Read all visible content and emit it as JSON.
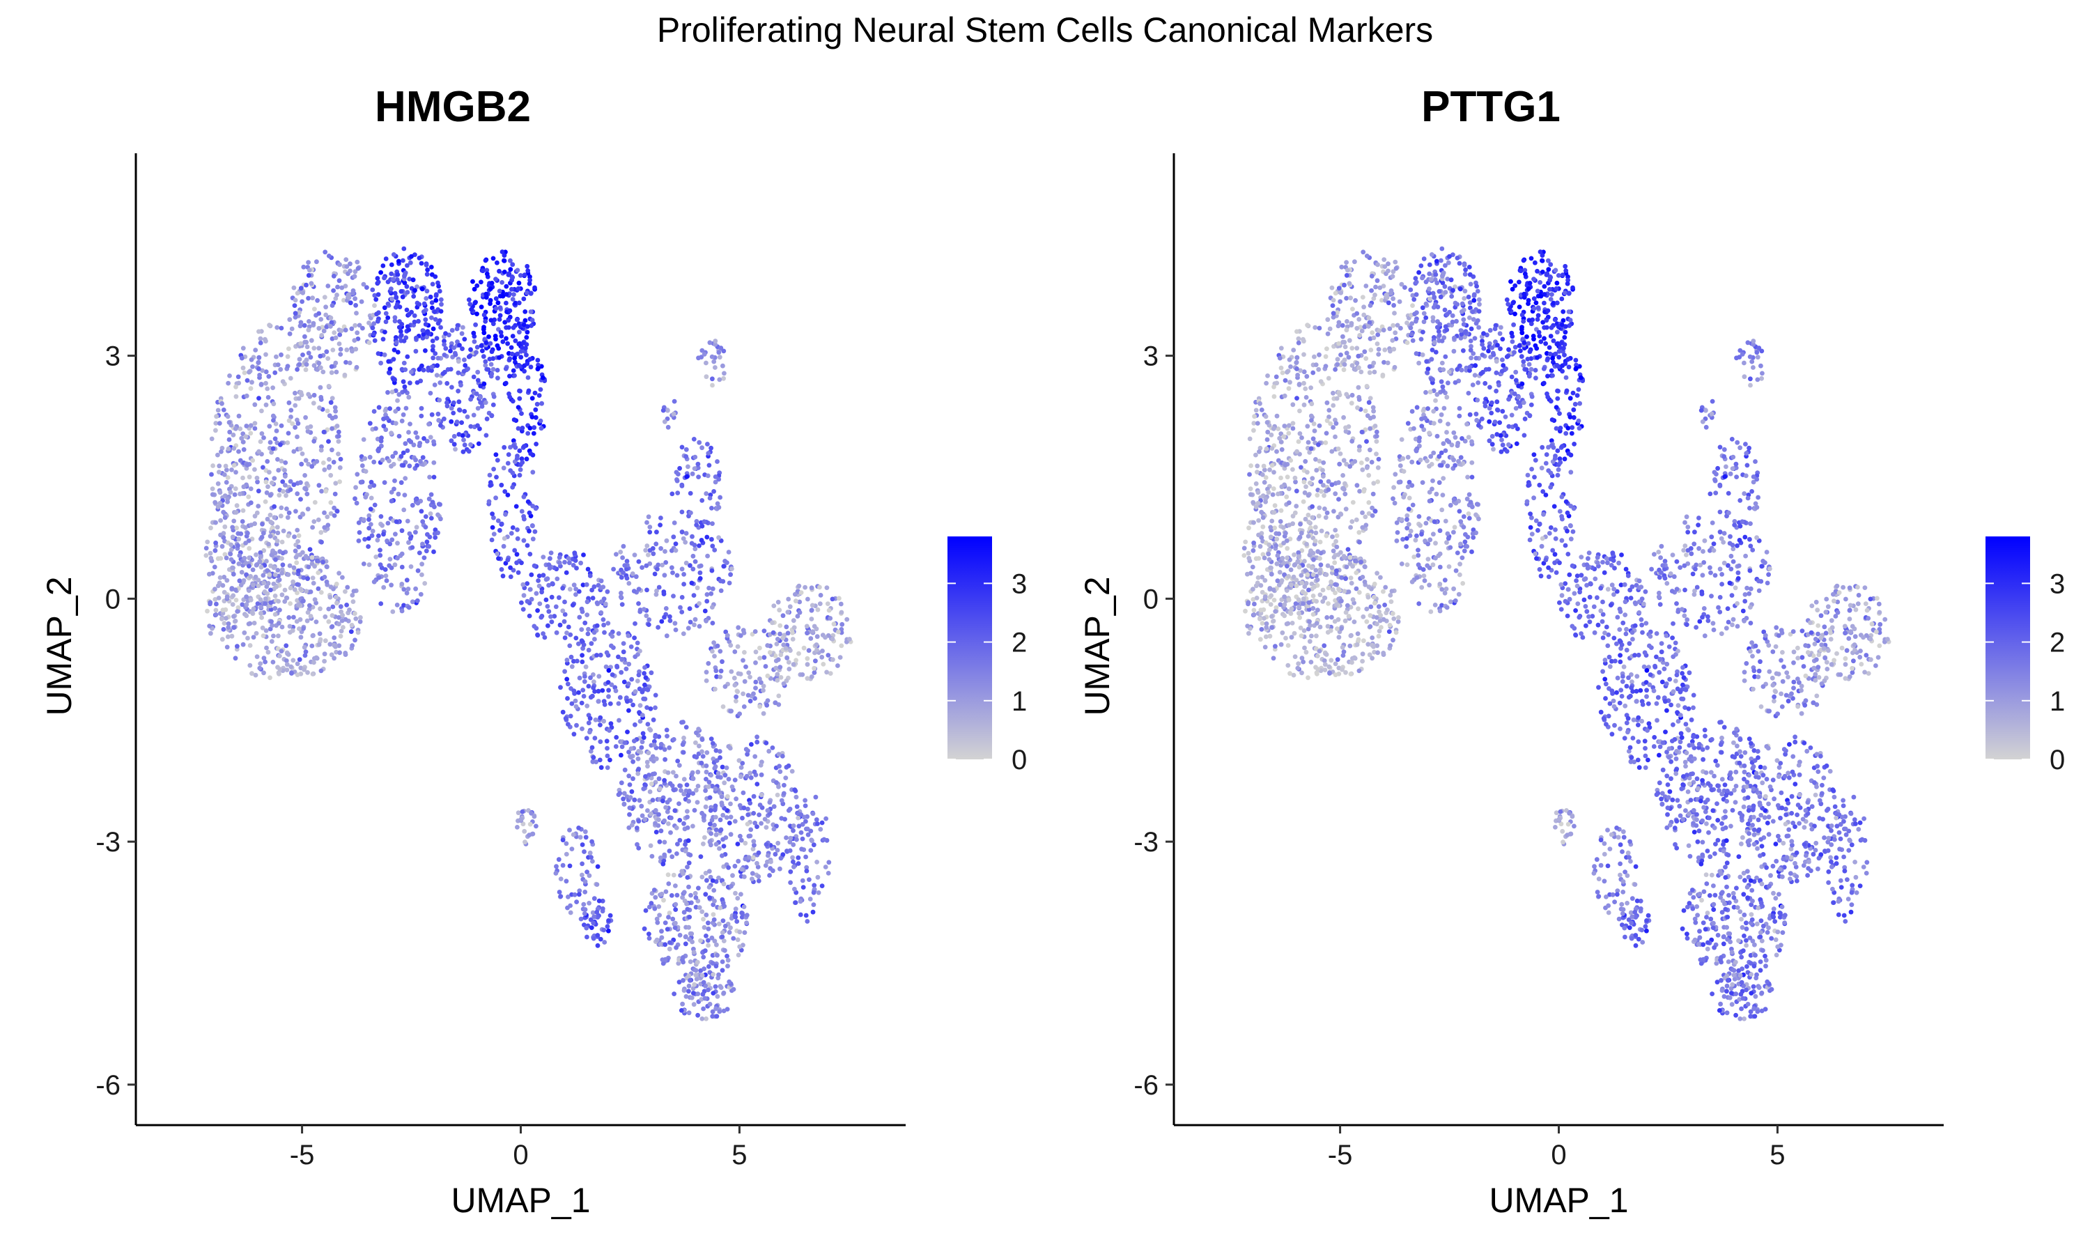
{
  "figure": {
    "title": "Proliferating Neural Stem Cells Canonical Markers"
  },
  "colors": {
    "low": "#d3d3d3",
    "high": "#0000ff",
    "axis": "#000000"
  },
  "chart_data": [
    {
      "type": "scatter",
      "title": "HMGB2",
      "xlabel": "UMAP_1",
      "ylabel": "UMAP_2",
      "xlim": [
        -8.8,
        8.8
      ],
      "ylim": [
        -6.5,
        5.5
      ],
      "xticks": [
        -5,
        0,
        5
      ],
      "yticks": [
        -6,
        -3,
        0,
        3
      ],
      "xtick_labels": [
        "-5",
        "0",
        "5"
      ],
      "ytick_labels": [
        "-6",
        "-3",
        "0",
        "3"
      ],
      "grid": false,
      "legend": {
        "placement": "right",
        "min": 0,
        "max": 3.8,
        "ticks": [
          0,
          1,
          2,
          3
        ],
        "tick_labels": [
          "0",
          "1",
          "2",
          "3"
        ]
      },
      "regions": [
        {
          "cx": -5.6,
          "cy": 1.6,
          "rx": 1.5,
          "ry": 1.8,
          "n": 520,
          "mean": 1.0
        },
        {
          "cx": -5.4,
          "cy": -0.2,
          "rx": 1.8,
          "ry": 0.8,
          "n": 360,
          "mean": 0.9
        },
        {
          "cx": -6.3,
          "cy": 0.6,
          "rx": 0.9,
          "ry": 0.8,
          "n": 130,
          "mean": 0.9
        },
        {
          "cx": -4.3,
          "cy": 3.5,
          "rx": 1.0,
          "ry": 0.8,
          "n": 180,
          "mean": 1.1
        },
        {
          "cx": -2.8,
          "cy": 1.2,
          "rx": 1.0,
          "ry": 1.4,
          "n": 260,
          "mean": 1.6
        },
        {
          "cx": -2.6,
          "cy": 3.5,
          "rx": 0.8,
          "ry": 0.9,
          "n": 220,
          "mean": 2.6
        },
        {
          "cx": -1.3,
          "cy": 2.6,
          "rx": 0.8,
          "ry": 0.8,
          "n": 160,
          "mean": 2.0
        },
        {
          "cx": -0.4,
          "cy": 3.6,
          "rx": 0.8,
          "ry": 0.7,
          "n": 190,
          "mean": 3.1
        },
        {
          "cx": 0.1,
          "cy": 2.6,
          "rx": 0.5,
          "ry": 0.9,
          "n": 90,
          "mean": 3.0
        },
        {
          "cx": -0.2,
          "cy": 1.1,
          "rx": 0.6,
          "ry": 0.9,
          "n": 100,
          "mean": 2.3
        },
        {
          "cx": 1.0,
          "cy": 0.0,
          "rx": 1.0,
          "ry": 0.6,
          "n": 140,
          "mean": 1.9
        },
        {
          "cx": 2.0,
          "cy": -1.2,
          "rx": 1.1,
          "ry": 0.9,
          "n": 210,
          "mean": 1.8
        },
        {
          "cx": 3.5,
          "cy": 0.3,
          "rx": 1.4,
          "ry": 0.8,
          "n": 170,
          "mean": 1.6
        },
        {
          "cx": 4.0,
          "cy": 1.3,
          "rx": 0.6,
          "ry": 0.7,
          "n": 70,
          "mean": 2.0
        },
        {
          "cx": 4.4,
          "cy": 2.9,
          "rx": 0.35,
          "ry": 0.3,
          "n": 28,
          "mean": 1.2
        },
        {
          "cx": 3.4,
          "cy": 2.3,
          "rx": 0.25,
          "ry": 0.2,
          "n": 12,
          "mean": 1.3
        },
        {
          "cx": 6.6,
          "cy": -0.4,
          "rx": 1.0,
          "ry": 0.6,
          "n": 150,
          "mean": 0.7
        },
        {
          "cx": 5.2,
          "cy": -0.9,
          "rx": 1.0,
          "ry": 0.6,
          "n": 110,
          "mean": 1.0
        },
        {
          "cx": 3.5,
          "cy": -2.4,
          "rx": 1.3,
          "ry": 0.9,
          "n": 280,
          "mean": 1.4
        },
        {
          "cx": 5.3,
          "cy": -2.6,
          "rx": 1.1,
          "ry": 0.9,
          "n": 220,
          "mean": 1.4
        },
        {
          "cx": 4.0,
          "cy": -4.0,
          "rx": 1.2,
          "ry": 0.7,
          "n": 240,
          "mean": 1.3
        },
        {
          "cx": 4.2,
          "cy": -4.9,
          "rx": 0.7,
          "ry": 0.3,
          "n": 80,
          "mean": 1.4
        },
        {
          "cx": 6.6,
          "cy": -3.2,
          "rx": 0.5,
          "ry": 0.8,
          "n": 80,
          "mean": 1.7
        },
        {
          "cx": 1.3,
          "cy": -3.4,
          "rx": 0.5,
          "ry": 0.6,
          "n": 60,
          "mean": 1.6
        },
        {
          "cx": 1.7,
          "cy": -4.0,
          "rx": 0.4,
          "ry": 0.3,
          "n": 40,
          "mean": 2.1
        },
        {
          "cx": 0.1,
          "cy": -2.8,
          "rx": 0.25,
          "ry": 0.25,
          "n": 25,
          "mean": 1.1
        }
      ]
    },
    {
      "type": "scatter",
      "title": "PTTG1",
      "xlabel": "UMAP_1",
      "ylabel": "UMAP_2",
      "xlim": [
        -8.8,
        8.8
      ],
      "ylim": [
        -6.5,
        5.5
      ],
      "xticks": [
        -5,
        0,
        5
      ],
      "yticks": [
        -6,
        -3,
        0,
        3
      ],
      "xtick_labels": [
        "-5",
        "0",
        "5"
      ],
      "ytick_labels": [
        "-6",
        "-3",
        "0",
        "3"
      ],
      "grid": false,
      "legend": {
        "placement": "right",
        "min": 0,
        "max": 3.8,
        "ticks": [
          0,
          1,
          2,
          3
        ],
        "tick_labels": [
          "0",
          "1",
          "2",
          "3"
        ]
      },
      "regions": [
        {
          "cx": -5.6,
          "cy": 1.6,
          "rx": 1.5,
          "ry": 1.8,
          "n": 520,
          "mean": 0.7
        },
        {
          "cx": -5.4,
          "cy": -0.2,
          "rx": 1.8,
          "ry": 0.8,
          "n": 360,
          "mean": 0.6
        },
        {
          "cx": -6.3,
          "cy": 0.6,
          "rx": 0.9,
          "ry": 0.8,
          "n": 130,
          "mean": 0.6
        },
        {
          "cx": -4.3,
          "cy": 3.5,
          "rx": 1.0,
          "ry": 0.8,
          "n": 180,
          "mean": 0.8
        },
        {
          "cx": -2.8,
          "cy": 1.2,
          "rx": 1.0,
          "ry": 1.4,
          "n": 260,
          "mean": 1.2
        },
        {
          "cx": -2.6,
          "cy": 3.5,
          "rx": 0.8,
          "ry": 0.9,
          "n": 220,
          "mean": 1.7
        },
        {
          "cx": -1.3,
          "cy": 2.6,
          "rx": 0.8,
          "ry": 0.8,
          "n": 160,
          "mean": 2.0
        },
        {
          "cx": -0.4,
          "cy": 3.6,
          "rx": 0.8,
          "ry": 0.7,
          "n": 190,
          "mean": 3.0
        },
        {
          "cx": 0.1,
          "cy": 2.6,
          "rx": 0.5,
          "ry": 0.9,
          "n": 90,
          "mean": 2.9
        },
        {
          "cx": -0.2,
          "cy": 1.1,
          "rx": 0.6,
          "ry": 0.9,
          "n": 100,
          "mean": 2.1
        },
        {
          "cx": 1.0,
          "cy": 0.0,
          "rx": 1.0,
          "ry": 0.6,
          "n": 140,
          "mean": 1.8
        },
        {
          "cx": 2.0,
          "cy": -1.2,
          "rx": 1.1,
          "ry": 0.9,
          "n": 210,
          "mean": 1.8
        },
        {
          "cx": 3.5,
          "cy": 0.3,
          "rx": 1.4,
          "ry": 0.8,
          "n": 170,
          "mean": 1.5
        },
        {
          "cx": 4.0,
          "cy": 1.3,
          "rx": 0.6,
          "ry": 0.7,
          "n": 70,
          "mean": 1.9
        },
        {
          "cx": 4.4,
          "cy": 2.9,
          "rx": 0.35,
          "ry": 0.3,
          "n": 28,
          "mean": 1.5
        },
        {
          "cx": 3.4,
          "cy": 2.3,
          "rx": 0.25,
          "ry": 0.2,
          "n": 12,
          "mean": 1.4
        },
        {
          "cx": 6.6,
          "cy": -0.4,
          "rx": 1.0,
          "ry": 0.6,
          "n": 150,
          "mean": 0.8
        },
        {
          "cx": 5.2,
          "cy": -0.9,
          "rx": 1.0,
          "ry": 0.6,
          "n": 110,
          "mean": 1.2
        },
        {
          "cx": 3.5,
          "cy": -2.4,
          "rx": 1.3,
          "ry": 0.9,
          "n": 280,
          "mean": 1.7
        },
        {
          "cx": 5.3,
          "cy": -2.6,
          "rx": 1.1,
          "ry": 0.9,
          "n": 220,
          "mean": 1.6
        },
        {
          "cx": 4.0,
          "cy": -4.0,
          "rx": 1.2,
          "ry": 0.7,
          "n": 240,
          "mean": 1.6
        },
        {
          "cx": 4.2,
          "cy": -4.9,
          "rx": 0.7,
          "ry": 0.3,
          "n": 80,
          "mean": 1.7
        },
        {
          "cx": 6.6,
          "cy": -3.2,
          "rx": 0.5,
          "ry": 0.8,
          "n": 80,
          "mean": 1.8
        },
        {
          "cx": 1.3,
          "cy": -3.4,
          "rx": 0.5,
          "ry": 0.6,
          "n": 60,
          "mean": 1.4
        },
        {
          "cx": 1.7,
          "cy": -4.0,
          "rx": 0.4,
          "ry": 0.3,
          "n": 40,
          "mean": 1.9
        },
        {
          "cx": 0.1,
          "cy": -2.8,
          "rx": 0.25,
          "ry": 0.25,
          "n": 25,
          "mean": 0.9
        }
      ]
    }
  ]
}
